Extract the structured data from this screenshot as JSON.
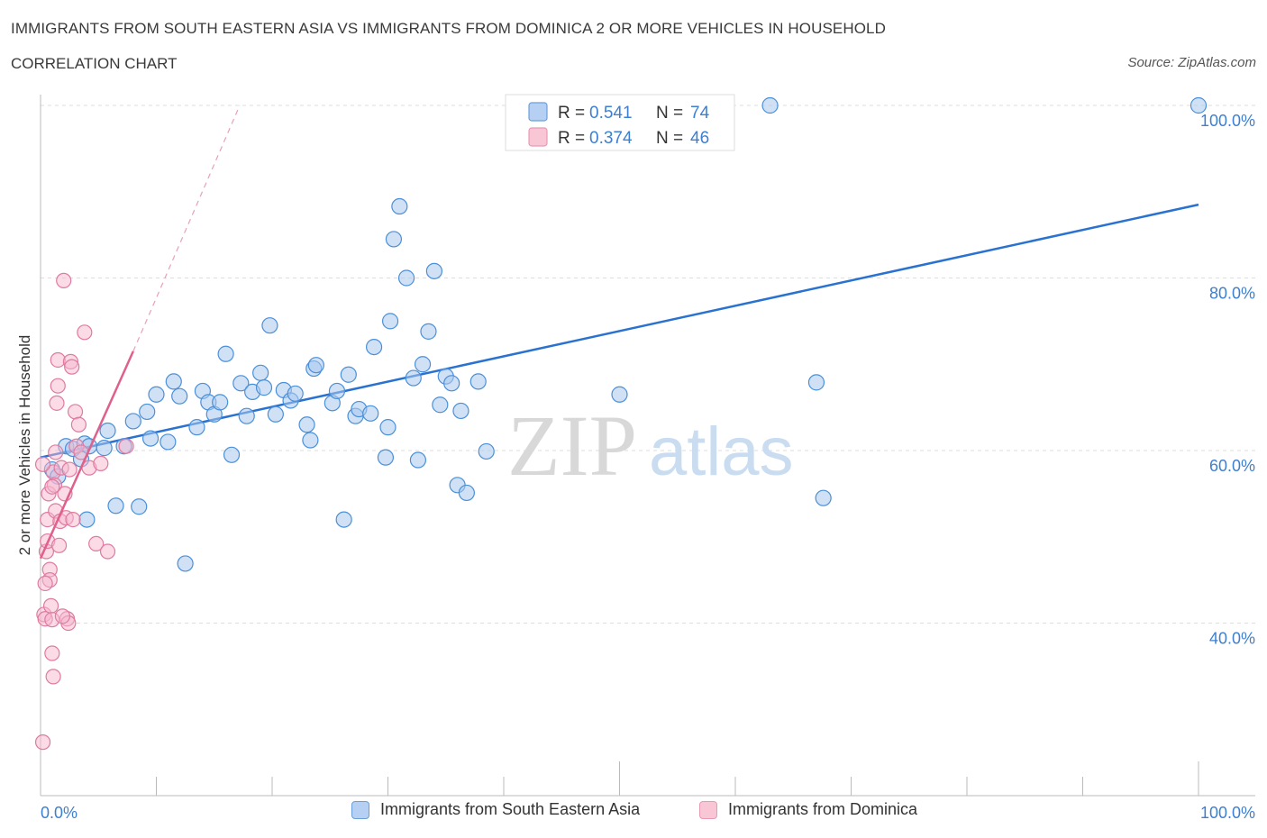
{
  "header": {
    "title": "IMMIGRANTS FROM SOUTH EASTERN ASIA VS IMMIGRANTS FROM DOMINICA 2 OR MORE VEHICLES IN HOUSEHOLD",
    "subtitle": "CORRELATION CHART",
    "source": "Source: ZipAtlas.com"
  },
  "watermark": {
    "zip": "ZIP",
    "atlas": "atlas"
  },
  "colors": {
    "blue": "#4a90d9",
    "blue_fill": "#a9c9ee",
    "blue_line": "#2a72d0",
    "pink": "#e07aa0",
    "pink_fill": "#f5b8cd",
    "pink_line": "#e0608c",
    "axis_text": "#3d7fd1",
    "grid": "#dddddd"
  },
  "chart_data": {
    "type": "scatter",
    "xlabel": "",
    "ylabel": "2 or more Vehicles in Household",
    "xlim": [
      0,
      100
    ],
    "ylim": [
      20,
      100
    ],
    "x_tick_labels": [
      "0.0%",
      "100.0%"
    ],
    "y_ticks": [
      40,
      60,
      80,
      100
    ],
    "y_tick_labels": [
      "40.0%",
      "60.0%",
      "80.0%",
      "100.0%"
    ],
    "grid": true,
    "legend_inset": [
      {
        "r_label": "R = ",
        "r_value": "0.541",
        "n_label": "N = ",
        "n_value": "74"
      },
      {
        "r_label": "R = ",
        "r_value": "0.374",
        "n_label": "N = ",
        "n_value": "46"
      }
    ],
    "series": [
      {
        "name": "Immigrants from South Eastern Asia",
        "color": "#4a90d9",
        "trend": {
          "x": [
            0,
            100
          ],
          "y": [
            59.2,
            88.5
          ]
        },
        "points": [
          [
            1.0,
            57.8
          ],
          [
            1.5,
            57.0
          ],
          [
            2.2,
            60.5
          ],
          [
            2.8,
            60.2
          ],
          [
            3.5,
            59.0
          ],
          [
            3.8,
            60.8
          ],
          [
            4.2,
            60.5
          ],
          [
            5.5,
            60.3
          ],
          [
            5.8,
            62.3
          ],
          [
            6.5,
            53.6
          ],
          [
            7.2,
            60.5
          ],
          [
            8.0,
            63.4
          ],
          [
            8.5,
            53.5
          ],
          [
            9.2,
            64.5
          ],
          [
            9.5,
            61.4
          ],
          [
            10.0,
            66.5
          ],
          [
            11.0,
            61.0
          ],
          [
            11.5,
            68.0
          ],
          [
            12.0,
            66.3
          ],
          [
            12.5,
            46.9
          ],
          [
            13.5,
            62.7
          ],
          [
            14.0,
            66.9
          ],
          [
            14.5,
            65.6
          ],
          [
            15.0,
            64.2
          ],
          [
            15.5,
            65.6
          ],
          [
            16.0,
            71.2
          ],
          [
            16.5,
            59.5
          ],
          [
            17.3,
            67.8
          ],
          [
            17.8,
            64.0
          ],
          [
            18.3,
            66.8
          ],
          [
            19.0,
            69.0
          ],
          [
            19.3,
            67.3
          ],
          [
            19.8,
            74.5
          ],
          [
            20.3,
            64.2
          ],
          [
            21.0,
            67.0
          ],
          [
            21.6,
            65.8
          ],
          [
            22.0,
            66.6
          ],
          [
            23.0,
            63.0
          ],
          [
            23.3,
            61.2
          ],
          [
            23.6,
            69.5
          ],
          [
            23.8,
            69.9
          ],
          [
            25.2,
            65.5
          ],
          [
            25.6,
            66.9
          ],
          [
            26.2,
            52.0
          ],
          [
            26.6,
            68.8
          ],
          [
            27.2,
            64.0
          ],
          [
            27.5,
            64.8
          ],
          [
            28.5,
            64.3
          ],
          [
            28.8,
            72.0
          ],
          [
            29.8,
            59.2
          ],
          [
            30.0,
            62.7
          ],
          [
            30.2,
            75.0
          ],
          [
            30.5,
            84.5
          ],
          [
            31.0,
            88.3
          ],
          [
            31.6,
            80.0
          ],
          [
            32.2,
            68.4
          ],
          [
            32.6,
            58.9
          ],
          [
            33.0,
            70.0
          ],
          [
            33.5,
            73.8
          ],
          [
            34.0,
            80.8
          ],
          [
            34.5,
            65.3
          ],
          [
            35.0,
            68.6
          ],
          [
            35.5,
            67.8
          ],
          [
            36.0,
            56.0
          ],
          [
            36.3,
            64.6
          ],
          [
            36.8,
            55.1
          ],
          [
            37.8,
            68.0
          ],
          [
            38.5,
            59.9
          ],
          [
            50.0,
            66.5
          ],
          [
            63.0,
            100.0
          ],
          [
            67.0,
            67.9
          ],
          [
            67.6,
            54.5
          ],
          [
            100.0,
            100.0
          ],
          [
            4.0,
            52.0
          ]
        ]
      },
      {
        "name": "Immigrants from Dominica",
        "color": "#e07aa0",
        "trend": {
          "x": [
            0,
            8
          ],
          "y": [
            47.5,
            71.5
          ]
        },
        "trend_extension": {
          "x": [
            8,
            17.2
          ],
          "y": [
            71.5,
            100
          ]
        },
        "points": [
          [
            0.2,
            26.2
          ],
          [
            0.3,
            41.0
          ],
          [
            0.4,
            40.5
          ],
          [
            0.5,
            48.3
          ],
          [
            0.6,
            52.0
          ],
          [
            0.6,
            49.5
          ],
          [
            0.7,
            55.0
          ],
          [
            0.8,
            46.2
          ],
          [
            0.8,
            45.0
          ],
          [
            0.9,
            42.0
          ],
          [
            1.0,
            40.4
          ],
          [
            1.0,
            36.5
          ],
          [
            1.1,
            33.8
          ],
          [
            1.1,
            57.5
          ],
          [
            1.2,
            56.0
          ],
          [
            1.3,
            53.0
          ],
          [
            1.3,
            59.8
          ],
          [
            1.4,
            65.5
          ],
          [
            1.5,
            67.5
          ],
          [
            1.5,
            70.5
          ],
          [
            1.6,
            49.0
          ],
          [
            1.7,
            51.8
          ],
          [
            1.8,
            58.0
          ],
          [
            2.0,
            79.7
          ],
          [
            2.1,
            55.0
          ],
          [
            2.2,
            52.2
          ],
          [
            2.3,
            40.5
          ],
          [
            2.4,
            40.0
          ],
          [
            1.9,
            40.8
          ],
          [
            2.5,
            57.8
          ],
          [
            2.6,
            70.3
          ],
          [
            2.7,
            69.7
          ],
          [
            2.8,
            52.0
          ],
          [
            3.0,
            64.5
          ],
          [
            3.1,
            60.5
          ],
          [
            3.3,
            63.0
          ],
          [
            3.5,
            59.8
          ],
          [
            3.8,
            73.7
          ],
          [
            4.2,
            58.0
          ],
          [
            4.8,
            49.2
          ],
          [
            5.2,
            58.5
          ],
          [
            5.8,
            48.3
          ],
          [
            7.4,
            60.5
          ],
          [
            0.2,
            58.4
          ],
          [
            0.4,
            44.6
          ],
          [
            1.0,
            55.8
          ]
        ]
      }
    ]
  },
  "bottom_legend": [
    {
      "label": "Immigrants from South Eastern Asia"
    },
    {
      "label": "Immigrants from Dominica"
    }
  ]
}
